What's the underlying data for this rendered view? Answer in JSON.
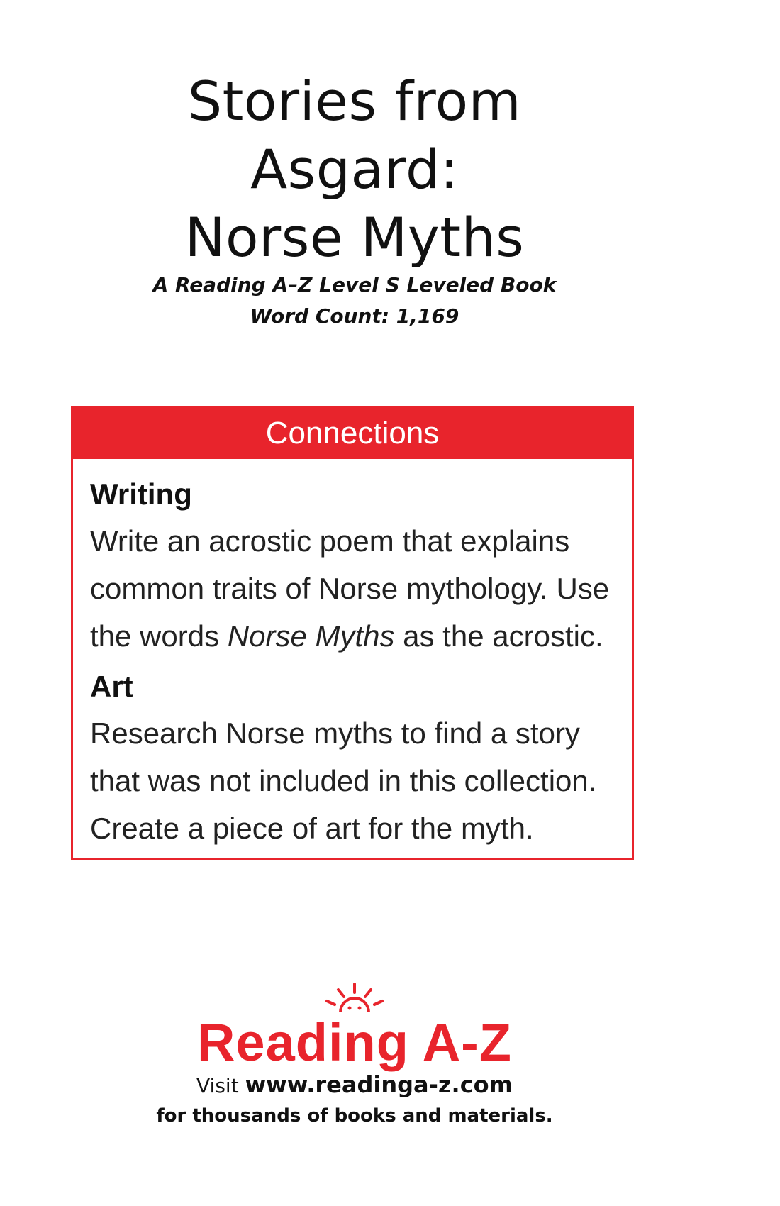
{
  "book": {
    "title_lines": [
      "Stories from",
      "Asgard:",
      "Norse Myths"
    ],
    "subtitle": "A Reading A–Z Level S Leveled Book",
    "word_count": "Word Count: 1,169"
  },
  "connections": {
    "header": "Connections",
    "writing": {
      "heading": "Writing",
      "text_before": "Write an acrostic poem that explains common traits of Norse mythology. Use the words ",
      "text_italic": "Norse Myths",
      "text_after": " as the acrostic."
    },
    "art": {
      "heading": "Art",
      "text": "Research Norse myths to find a story that was not included in this collection. Create a piece of art for the myth."
    }
  },
  "logo": {
    "text": "Reading A-Z",
    "icon": "sun-icon",
    "color": "#e8242c"
  },
  "footer": {
    "visit": "Visit ",
    "url": "www.readinga-z.com",
    "tagline": "for thousands of books and materials."
  }
}
